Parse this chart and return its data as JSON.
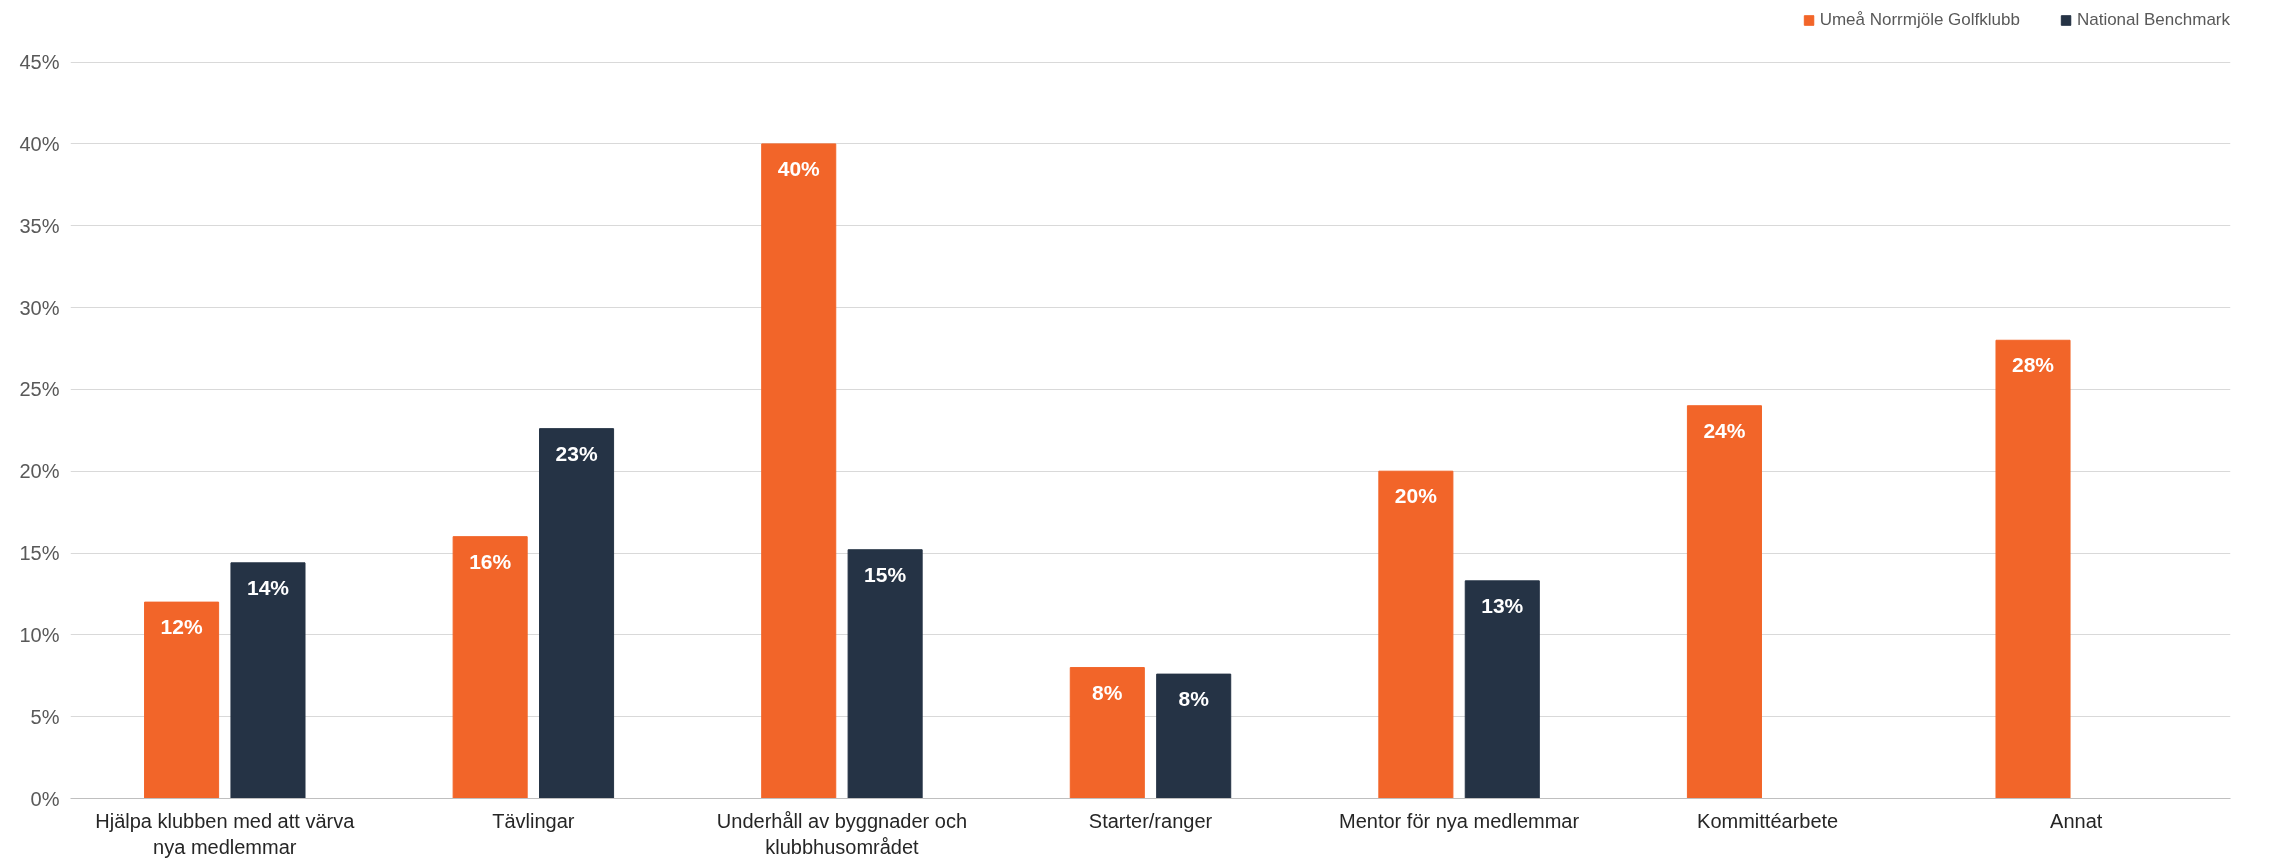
{
  "chart_data": {
    "type": "bar",
    "categories": [
      "Hjälpa klubben med att värva nya medlemmar",
      "Tävlingar",
      "Underhåll av byggnader och klubbhusområdet",
      "Starter/ranger",
      "Mentor för nya medlemmar",
      "Kommittéarbete",
      "Annat"
    ],
    "series": [
      {
        "name": "Umeå Norrmjöle Golfklubb",
        "color": "#f26529",
        "values": [
          12,
          16,
          40,
          8,
          20,
          24,
          28
        ],
        "value_labels": [
          "12%",
          "16%",
          "40%",
          "8%",
          "20%",
          "24%",
          "28%"
        ]
      },
      {
        "name": "National Benchmark",
        "color": "#253345",
        "values": [
          14.4,
          22.6,
          15.2,
          7.6,
          13.3,
          null,
          null
        ],
        "value_labels": [
          "14%",
          "23%",
          "15%",
          "8%",
          "13%",
          null,
          null
        ]
      }
    ],
    "ylim": [
      0,
      45
    ],
    "yticks": [
      {
        "value": 0,
        "label": "0%"
      },
      {
        "value": 5,
        "label": "5%"
      },
      {
        "value": 10,
        "label": "10%"
      },
      {
        "value": 15,
        "label": "15%"
      },
      {
        "value": 20,
        "label": "20%"
      },
      {
        "value": 25,
        "label": "25%"
      },
      {
        "value": 30,
        "label": "30%"
      },
      {
        "value": 35,
        "label": "35%"
      },
      {
        "value": 40,
        "label": "40%"
      },
      {
        "value": 45,
        "label": "45%"
      }
    ],
    "grid": "y",
    "legend": "top right"
  }
}
